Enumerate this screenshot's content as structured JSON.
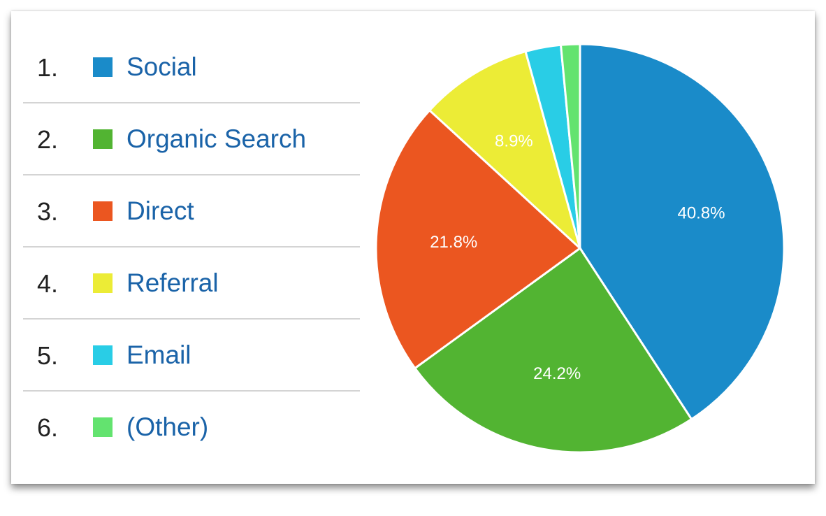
{
  "chart_data": {
    "type": "pie",
    "legend_placement": "left",
    "categories": [
      "Social",
      "Organic Search",
      "Direct",
      "Referral",
      "Email",
      "(Other)"
    ],
    "values": [
      40.8,
      24.2,
      21.8,
      8.9,
      2.8,
      1.5
    ],
    "data_labels": [
      "40.8%",
      "24.2%",
      "21.8%",
      "8.9%",
      "",
      ""
    ],
    "ranks": [
      "1.",
      "2.",
      "3.",
      "4.",
      "5.",
      "6."
    ],
    "colors": [
      "#1a8bc9",
      "#52b432",
      "#eb5620",
      "#ecec36",
      "#29cde6",
      "#63e36f"
    ]
  }
}
